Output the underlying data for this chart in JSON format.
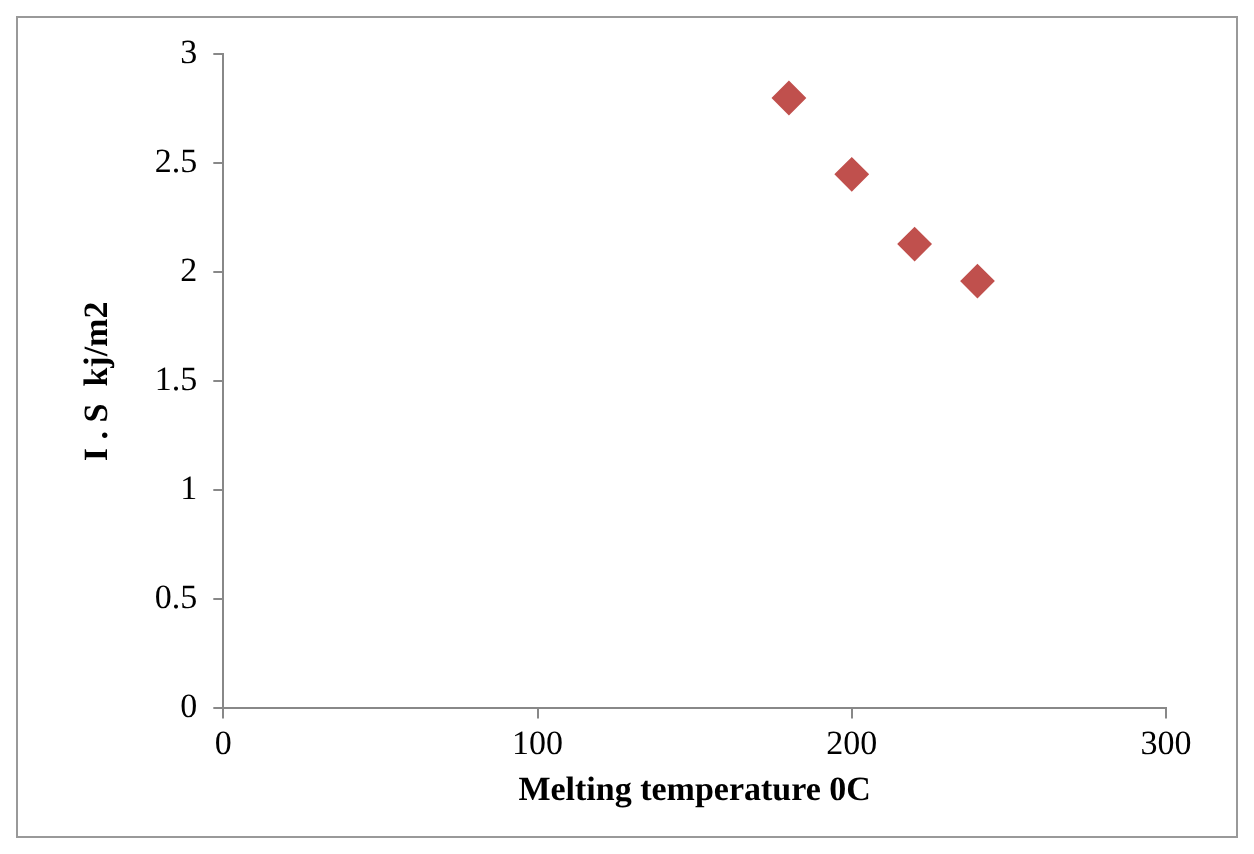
{
  "chart_data": {
    "type": "scatter",
    "xlabel": "Melting temperature 0C",
    "ylabel": "I . S  kj/m2",
    "x": [
      180,
      200,
      220,
      240
    ],
    "series": [
      {
        "color": "#c0504d",
        "values": [
          2.8,
          2.45,
          2.13,
          1.96
        ]
      }
    ],
    "xlim": [
      0,
      300
    ],
    "xticks": [
      0,
      100,
      200,
      300
    ],
    "ylim": [
      0,
      3
    ],
    "yticks": [
      0,
      0.5,
      1,
      1.5,
      2,
      2.5,
      3
    ],
    "grid": false,
    "legend": false,
    "marker": "diamond"
  }
}
